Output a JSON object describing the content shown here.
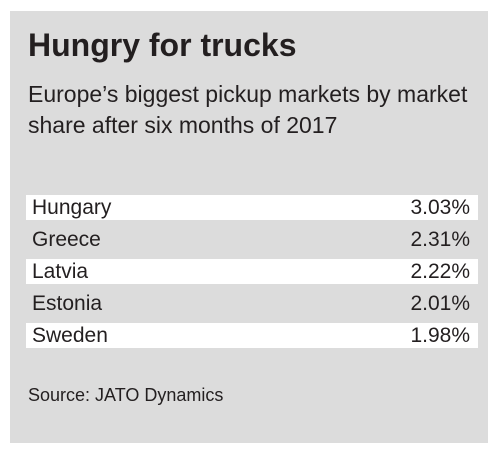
{
  "chart_data": {
    "type": "table",
    "title": "Hungry for trucks",
    "subtitle": "Europe’s biggest pickup markets by market share after six months of 2017",
    "source": "Source: JATO Dynamics",
    "rows": [
      {
        "country": "Hungary",
        "share": "3.03%",
        "value": 3.03
      },
      {
        "country": "Greece",
        "share": "2.31%",
        "value": 2.31
      },
      {
        "country": "Latvia",
        "share": "2.22%",
        "value": 2.22
      },
      {
        "country": "Estonia",
        "share": "2.01%",
        "value": 2.01
      },
      {
        "country": "Sweden",
        "share": "1.98%",
        "value": 1.98
      }
    ]
  },
  "colors": {
    "panel_background": "#dcdcdc",
    "row_highlight": "#ffffff",
    "text": "#231f20"
  }
}
